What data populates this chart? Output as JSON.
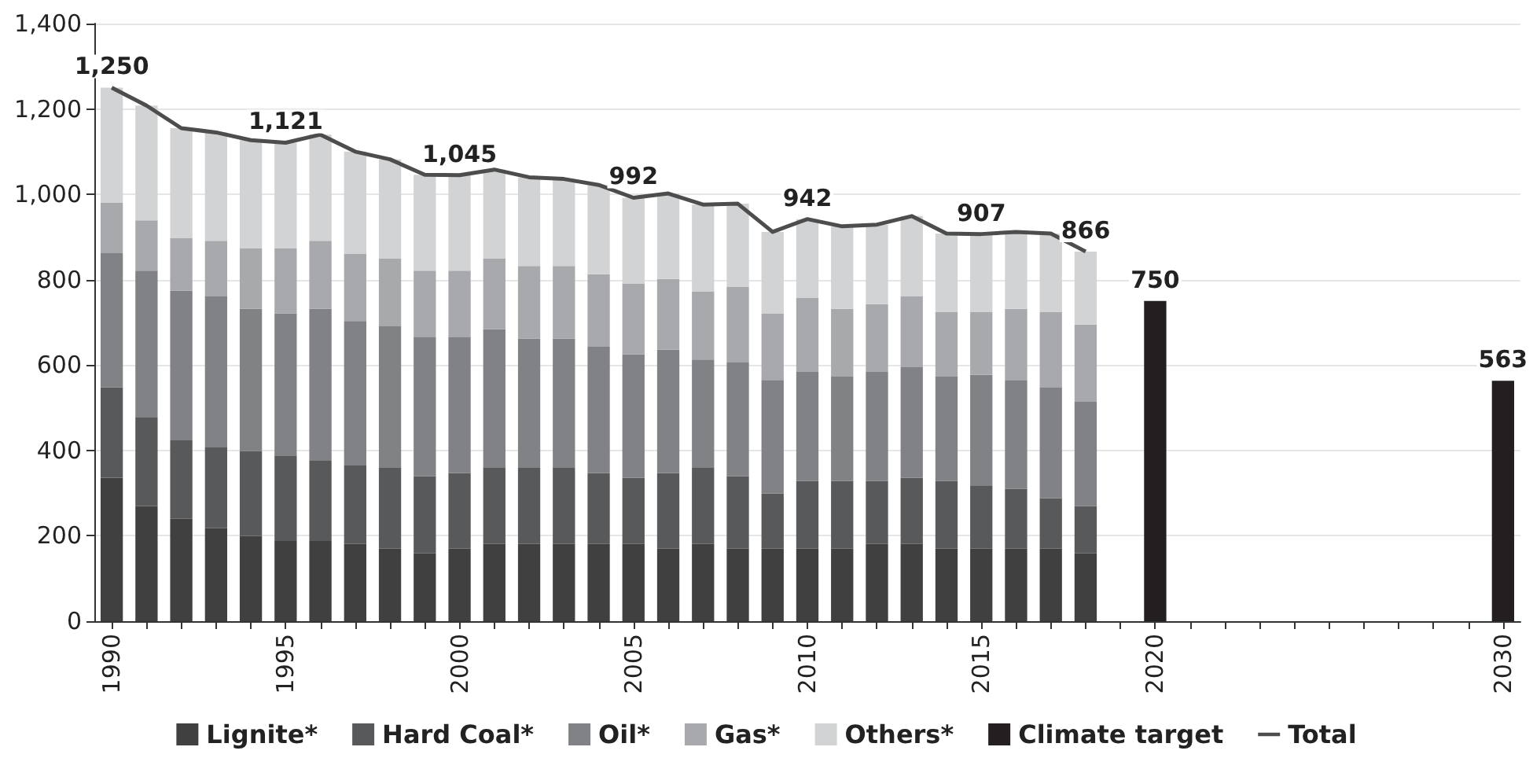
{
  "chart_data": {
    "type": "bar",
    "stacked": true,
    "legend": "bottom",
    "grid": "y",
    "marker": "none",
    "categories": [
      "1990",
      null,
      null,
      null,
      null,
      "1995",
      null,
      null,
      null,
      null,
      "2000",
      null,
      null,
      null,
      null,
      "2005",
      null,
      null,
      null,
      null,
      "2010",
      null,
      null,
      null,
      null,
      "2015",
      null,
      null,
      null,
      null,
      "2020",
      null,
      null,
      null,
      null,
      null,
      null,
      null,
      null,
      null,
      "2030"
    ],
    "ylim": [
      0,
      1400
    ],
    "yticks": [
      0,
      200,
      400,
      600,
      800,
      {
        "value": 1000,
        "label": "1,000"
      },
      {
        "value": 1200,
        "label": "1,200"
      },
      {
        "value": 1400,
        "label": "1,400"
      }
    ],
    "series": [
      {
        "name": "Lignite*",
        "color": "#404040",
        "values": [
          336,
          270,
          240,
          218,
          200,
          188,
          188,
          181,
          170,
          159,
          170,
          181,
          181,
          181,
          181,
          181,
          170,
          181,
          170,
          170,
          170,
          170,
          181,
          181,
          170,
          170,
          170,
          170,
          159,
          null,
          null,
          null,
          null,
          null,
          null,
          null,
          null,
          null,
          null,
          null,
          null
        ]
      },
      {
        "name": "Hard Coal*",
        "color": "#58595b",
        "values": [
          212,
          207,
          185,
          189,
          199,
          200,
          189,
          185,
          189,
          181,
          177,
          178,
          178,
          178,
          166,
          155,
          177,
          178,
          170,
          129,
          159,
          159,
          148,
          155,
          159,
          148,
          140,
          118,
          111,
          null,
          null,
          null,
          null,
          null,
          null,
          null,
          null,
          null,
          null,
          null,
          null
        ]
      },
      {
        "name": "Oil*",
        "color": "#808285",
        "values": [
          314,
          344,
          349,
          354,
          333,
          333,
          355,
          337,
          332,
          325,
          318,
          325,
          303,
          303,
          296,
          289,
          289,
          254,
          266,
          266,
          255,
          244,
          255,
          259,
          244,
          259,
          255,
          259,
          244,
          null,
          null,
          null,
          null,
          null,
          null,
          null,
          null,
          null,
          null,
          null,
          null
        ]
      },
      {
        "name": "Gas*",
        "color": "#a7a9ac",
        "values": [
          119,
          118,
          124,
          130,
          141,
          152,
          159,
          158,
          159,
          156,
          156,
          166,
          170,
          170,
          170,
          166,
          166,
          159,
          178,
          156,
          174,
          159,
          159,
          166,
          151,
          147,
          167,
          177,
          181,
          null,
          null,
          null,
          null,
          null,
          null,
          null,
          null,
          null,
          null,
          null,
          null
        ]
      },
      {
        "name": "Others*",
        "color": "#d1d3d4",
        "values": [
          269,
          269,
          257,
          254,
          254,
          248,
          249,
          239,
          232,
          225,
          224,
          208,
          208,
          204,
          209,
          201,
          200,
          204,
          194,
          191,
          184,
          193,
          186,
          188,
          184,
          183,
          180,
          184,
          171,
          null,
          null,
          null,
          null,
          null,
          null,
          null,
          null,
          null,
          null,
          null,
          null
        ]
      },
      {
        "name": "Climate target",
        "color": "#231f20",
        "values": [
          null,
          null,
          null,
          null,
          null,
          null,
          null,
          null,
          null,
          null,
          null,
          null,
          null,
          null,
          null,
          null,
          null,
          null,
          null,
          null,
          null,
          null,
          null,
          null,
          null,
          null,
          null,
          null,
          null,
          null,
          750,
          null,
          null,
          null,
          null,
          null,
          null,
          null,
          null,
          null,
          563
        ],
        "value_labels": [
          null,
          null,
          null,
          null,
          null,
          null,
          null,
          null,
          null,
          null,
          null,
          null,
          null,
          null,
          null,
          null,
          null,
          null,
          null,
          null,
          null,
          null,
          null,
          null,
          null,
          null,
          null,
          null,
          null,
          null,
          "750",
          null,
          null,
          null,
          null,
          null,
          null,
          null,
          null,
          null,
          "563"
        ]
      },
      {
        "name": "Total",
        "type": "line",
        "color": "#4d4d4d",
        "values": [
          1250,
          1208,
          1155,
          1145,
          1127,
          1121,
          1140,
          1100,
          1082,
          1046,
          1045,
          1058,
          1040,
          1036,
          1022,
          992,
          1002,
          976,
          978,
          912,
          942,
          925,
          929,
          949,
          908,
          907,
          912,
          908,
          866,
          null,
          null,
          null,
          null,
          null,
          null,
          null,
          null,
          null,
          null,
          null,
          null
        ],
        "value_labels": [
          "1,250",
          null,
          null,
          null,
          null,
          "1,121",
          null,
          null,
          null,
          null,
          "1,045",
          null,
          null,
          null,
          null,
          "992",
          null,
          null,
          null,
          null,
          "942",
          null,
          null,
          null,
          null,
          "907",
          null,
          null,
          "866",
          null,
          null,
          null,
          null,
          null,
          null,
          null,
          null,
          null,
          null,
          null,
          null
        ]
      }
    ]
  }
}
